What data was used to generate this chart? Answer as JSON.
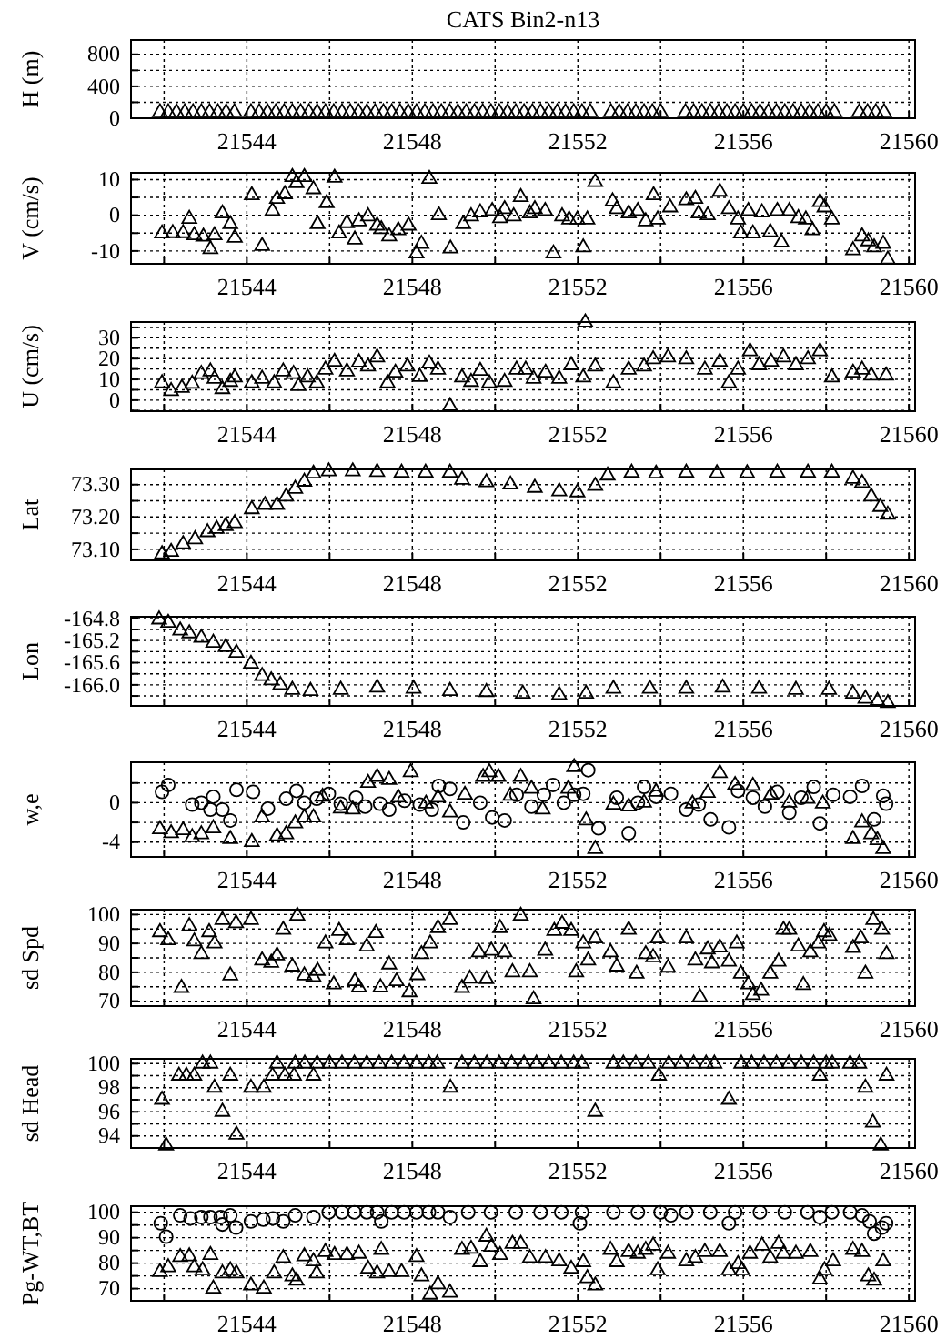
{
  "chart_data": [
    {
      "type": "scatter",
      "title": "CATS Bin2-n13",
      "ylabel": "H (m)",
      "xlim": [
        21541.2,
        21560.15
      ],
      "xticks": [
        {
          "value": 21542,
          "label": null
        },
        21544,
        {
          "value": 21546,
          "label": null
        },
        21548,
        {
          "value": 21550,
          "label": null
        },
        21552,
        {
          "value": 21554,
          "label": null
        },
        21556,
        {
          "value": 21558,
          "label": null
        },
        21560
      ],
      "ylim": [
        0,
        980
      ],
      "yticks": [
        0,
        {
          "value": 200,
          "label": null
        },
        400,
        {
          "value": 600,
          "label": null
        },
        800
      ],
      "grid": true,
      "series": [
        {
          "color": "#000000",
          "marker": "triangle",
          "x": [
            21541.9,
            21542.1,
            21542.3,
            21542.5,
            21542.7,
            21542.9,
            21543.1,
            21543.3,
            21543.5,
            21543.7,
            21544.1,
            21544.3,
            21544.5,
            21544.7,
            21544.9,
            21545.1,
            21545.3,
            21545.5,
            21545.7,
            21545.9,
            21546.1,
            21546.3,
            21546.5,
            21546.7,
            21546.9,
            21547.1,
            21547.3,
            21547.5,
            21547.7,
            21547.9,
            21548.1,
            21548.3,
            21548.5,
            21548.7,
            21548.9,
            21549.1,
            21549.3,
            21549.5,
            21549.7,
            21549.9,
            21550.1,
            21550.3,
            21550.5,
            21550.7,
            21550.9,
            21551.1,
            21551.3,
            21551.5,
            21551.7,
            21551.9,
            21552.1,
            21552.3,
            21552.8,
            21553.0,
            21553.2,
            21553.4,
            21553.6,
            21553.8,
            21554.0,
            21554.6,
            21554.8,
            21555.0,
            21555.2,
            21555.4,
            21555.6,
            21555.8,
            21556.0,
            21556.2,
            21556.4,
            21556.6,
            21556.8,
            21557.0,
            21557.2,
            21557.4,
            21557.6,
            21557.8,
            21558.0,
            21558.2,
            21558.8,
            21559.0,
            21559.2,
            21559.4
          ],
          "values": [
            75,
            75,
            75,
            75,
            75,
            75,
            75,
            75,
            75,
            75,
            75,
            75,
            75,
            75,
            75,
            75,
            75,
            75,
            75,
            75,
            75,
            75,
            75,
            75,
            75,
            75,
            75,
            75,
            75,
            75,
            75,
            75,
            75,
            75,
            75,
            75,
            75,
            75,
            75,
            75,
            75,
            75,
            75,
            75,
            75,
            75,
            75,
            75,
            75,
            75,
            75,
            75,
            75,
            75,
            75,
            75,
            75,
            75,
            75,
            75,
            75,
            75,
            75,
            75,
            75,
            75,
            75,
            75,
            75,
            75,
            75,
            75,
            75,
            75,
            75,
            75,
            75,
            75,
            75,
            75,
            75,
            75
          ]
        }
      ]
    },
    {
      "type": "scatter",
      "ylabel": "V (cm/s)",
      "xlim": [
        21541.2,
        21560.15
      ],
      "xticks": [
        {
          "value": 21542,
          "label": null
        },
        21544,
        {
          "value": 21546,
          "label": null
        },
        21548,
        {
          "value": 21550,
          "label": null
        },
        21552,
        {
          "value": 21554,
          "label": null
        },
        21556,
        {
          "value": 21558,
          "label": null
        },
        21560
      ],
      "ylim": [
        -13.6,
        11.9
      ],
      "yticks": [
        -10,
        {
          "value": -5,
          "label": null
        },
        0,
        {
          "value": 5,
          "label": null
        },
        10
      ],
      "grid": true,
      "series": [
        {
          "color": "#000000",
          "marker": "triangle",
          "x": [
            21541.95,
            21542.21,
            21542.46,
            21542.61,
            21542.73,
            21542.95,
            21543.12,
            21543.22,
            21543.41,
            21543.6,
            21543.71,
            21544.12,
            21544.37,
            21544.62,
            21544.73,
            21544.92,
            21545.1,
            21545.2,
            21545.39,
            21545.61,
            21545.71,
            21545.93,
            21546.12,
            21546.23,
            21546.42,
            21546.61,
            21546.71,
            21546.93,
            21547.15,
            21547.25,
            21547.44,
            21547.66,
            21547.91,
            21548.1,
            21548.22,
            21548.41,
            21548.64,
            21548.92,
            21549.23,
            21549.42,
            21549.64,
            21549.93,
            21550.12,
            21550.23,
            21550.45,
            21550.62,
            21550.84,
            21550.96,
            21551.21,
            21551.41,
            21551.62,
            21551.79,
            21551.99,
            21552.13,
            21552.23,
            21552.42,
            21552.84,
            21552.94,
            21553.23,
            21553.45,
            21553.64,
            21553.83,
            21553.93,
            21554.23,
            21554.62,
            21554.84,
            21554.92,
            21555.14,
            21555.43,
            21555.65,
            21555.87,
            21555.94,
            21556.12,
            21556.23,
            21556.45,
            21556.65,
            21556.82,
            21556.92,
            21557.11,
            21557.33,
            21557.51,
            21557.67,
            21557.85,
            21557.96,
            21558.14,
            21558.65,
            21558.87,
            21559.02,
            21559.16,
            21559.38,
            21559.49
          ],
          "values": [
            -5.1,
            -5,
            -5,
            -1,
            -5.6,
            -6,
            -9.5,
            -5.6,
            0.5,
            -2.5,
            -6.3,
            5.6,
            -8.6,
            1.2,
            4.6,
            5.9,
            10.7,
            9,
            10.7,
            7.3,
            -2.5,
            3.4,
            10.5,
            -5.1,
            -2.2,
            -6.8,
            -1.7,
            -0.3,
            -2.9,
            -3.9,
            -5.9,
            -4.2,
            -2.9,
            -10.7,
            -8,
            10.2,
            0,
            -9.3,
            -2.5,
            -0.3,
            0.8,
            1.2,
            -0.8,
            1.7,
            -0.3,
            5.1,
            0.5,
            1.7,
            1.2,
            -10.7,
            -0.3,
            -1.2,
            -1.2,
            -9,
            -1.2,
            9.3,
            3.9,
            1.7,
            0.5,
            1.2,
            -1.7,
            5.6,
            -1.2,
            2.2,
            4.2,
            4.6,
            0.5,
            0,
            6.6,
            1.7,
            -1.2,
            -5.1,
            1.2,
            -5.1,
            0.8,
            -4.7,
            1.2,
            -7.6,
            1.2,
            -0.8,
            -1.2,
            -4.2,
            3.7,
            2.2,
            -1.2,
            -9.8,
            -5.9,
            -7.3,
            -9,
            -8,
            -12.4
          ]
        }
      ]
    },
    {
      "type": "scatter",
      "ylabel": "U (cm/s)",
      "xlim": [
        21541.2,
        21560.15
      ],
      "xticks": [
        {
          "value": 21542,
          "label": null
        },
        21544,
        {
          "value": 21546,
          "label": null
        },
        21548,
        {
          "value": 21550,
          "label": null
        },
        21552,
        {
          "value": 21554,
          "label": null
        },
        21556,
        {
          "value": 21558,
          "label": null
        },
        21560
      ],
      "ylim": [
        -5.3,
        37.6
      ],
      "yticks": [
        {
          "value": -5,
          "label": null
        },
        0,
        {
          "value": 5,
          "label": null
        },
        10,
        {
          "value": 15,
          "label": null
        },
        20,
        {
          "value": 25,
          "label": null
        },
        30,
        {
          "value": 35,
          "label": null
        }
      ],
      "grid": true,
      "series": [
        {
          "color": "#000000",
          "marker": "triangle",
          "x": [
            21541.95,
            21542.17,
            21542.43,
            21542.68,
            21542.9,
            21543.12,
            21543.22,
            21543.41,
            21543.6,
            21543.71,
            21544.12,
            21544.37,
            21544.66,
            21544.88,
            21545.13,
            21545.25,
            21545.47,
            21545.69,
            21545.9,
            21546.12,
            21546.42,
            21546.71,
            21546.93,
            21547.15,
            21547.4,
            21547.59,
            21547.88,
            21548.18,
            21548.41,
            21548.62,
            21548.91,
            21549.2,
            21549.42,
            21549.64,
            21549.86,
            21550.23,
            21550.52,
            21550.74,
            21550.93,
            21551.22,
            21551.55,
            21551.84,
            21552.13,
            21552.18,
            21552.42,
            21552.86,
            21553.23,
            21553.6,
            21553.82,
            21554.18,
            21554.62,
            21555.07,
            21555.43,
            21555.65,
            21555.87,
            21556.16,
            21556.38,
            21556.67,
            21556.97,
            21557.27,
            21557.56,
            21557.85,
            21558.14,
            21558.65,
            21558.87,
            21559.09,
            21559.45
          ],
          "values": [
            8.2,
            4.4,
            5.9,
            7.9,
            12.6,
            13.8,
            10.3,
            5.3,
            8.8,
            10.9,
            8.2,
            10.3,
            8.2,
            13.8,
            12.6,
            6.8,
            10.9,
            8.2,
            14.7,
            18.5,
            13.8,
            18.2,
            16.2,
            20.6,
            8.2,
            13.2,
            16.2,
            11.2,
            17.6,
            14.7,
            -2.9,
            10.9,
            8.8,
            14.1,
            8.2,
            8.8,
            14.7,
            14.7,
            10.3,
            13.2,
            10.3,
            16.8,
            10.9,
            37.4,
            16.2,
            8.2,
            14.7,
            16.2,
            19.7,
            20.6,
            19.7,
            14.7,
            18.5,
            8.2,
            14.7,
            23.5,
            16.8,
            18.5,
            20.6,
            16.8,
            19.7,
            23.5,
            10.9,
            13.2,
            14.7,
            11.8,
            11.8
          ]
        }
      ]
    },
    {
      "type": "scatter",
      "ylabel": "Lat",
      "xlim": [
        21541.2,
        21560.15
      ],
      "xticks": [
        {
          "value": 21542,
          "label": null
        },
        21544,
        {
          "value": 21546,
          "label": null
        },
        21548,
        {
          "value": 21550,
          "label": null
        },
        21552,
        {
          "value": 21554,
          "label": null
        },
        21556,
        {
          "value": 21558,
          "label": null
        },
        21560
      ],
      "ylim": [
        73.066,
        73.347
      ],
      "yticks": [
        {
          "value": 73.1,
          "label": "73.10"
        },
        {
          "value": 73.15,
          "label": null
        },
        {
          "value": 73.2,
          "label": "73.20"
        },
        {
          "value": 73.25,
          "label": null
        },
        {
          "value": 73.3,
          "label": "73.30"
        }
      ],
      "grid": true,
      "series": [
        {
          "color": "#000000",
          "marker": "triangle",
          "x": [
            21541.95,
            21542.17,
            21542.46,
            21542.75,
            21543.05,
            21543.27,
            21543.49,
            21543.71,
            21544.12,
            21544.44,
            21544.73,
            21544.95,
            21545.17,
            21545.39,
            21545.61,
            21545.98,
            21546.56,
            21547.15,
            21547.74,
            21548.32,
            21548.91,
            21549.2,
            21549.79,
            21550.37,
            21550.96,
            21551.55,
            21551.99,
            21552.42,
            21552.72,
            21553.3,
            21553.89,
            21554.62,
            21555.36,
            21556.09,
            21556.82,
            21557.56,
            21558.14,
            21558.65,
            21558.87,
            21559.09,
            21559.31,
            21559.49
          ],
          "values": [
            73.085,
            73.092,
            73.116,
            73.131,
            73.153,
            73.163,
            73.172,
            73.181,
            73.224,
            73.237,
            73.237,
            73.263,
            73.287,
            73.309,
            73.334,
            73.341,
            73.341,
            73.339,
            73.337,
            73.337,
            73.337,
            73.315,
            73.307,
            73.3,
            73.29,
            73.279,
            73.276,
            73.296,
            73.328,
            73.337,
            73.334,
            73.337,
            73.335,
            73.335,
            73.337,
            73.337,
            73.337,
            73.318,
            73.305,
            73.263,
            73.231,
            73.207
          ]
        }
      ]
    },
    {
      "type": "scatter",
      "ylabel": "Lon",
      "xlim": [
        21541.2,
        21560.15
      ],
      "xticks": [
        {
          "value": 21542,
          "label": null
        },
        21544,
        {
          "value": 21546,
          "label": null
        },
        21548,
        {
          "value": 21550,
          "label": null
        },
        21552,
        {
          "value": 21554,
          "label": null
        },
        21556,
        {
          "value": 21558,
          "label": null
        },
        21560
      ],
      "ylim": [
        -166.38,
        -164.77
      ],
      "yticks": [
        {
          "value": -166.2,
          "label": null
        },
        {
          "value": -166.0,
          "label": "-166.0"
        },
        {
          "value": -165.8,
          "label": null
        },
        {
          "value": -165.6,
          "label": "-165.6"
        },
        {
          "value": -165.4,
          "label": null
        },
        {
          "value": -165.2,
          "label": "-165.2"
        },
        {
          "value": -165.0,
          "label": null
        },
        {
          "value": -164.8,
          "label": "-164.8"
        }
      ],
      "grid": true,
      "series": [
        {
          "color": "#000000",
          "marker": "triangle",
          "x": [
            21541.88,
            21542.1,
            21542.39,
            21542.61,
            21542.9,
            21543.19,
            21543.49,
            21543.75,
            21544.1,
            21544.37,
            21544.59,
            21544.81,
            21545.1,
            21545.54,
            21546.27,
            21547.15,
            21548.03,
            21548.91,
            21549.79,
            21550.67,
            21551.55,
            21552.2,
            21552.86,
            21553.74,
            21554.62,
            21555.5,
            21556.38,
            21557.27,
            21558.07,
            21558.65,
            21558.95,
            21559.24,
            21559.49
          ],
          "values": [
            -164.82,
            -164.88,
            -165.02,
            -165.07,
            -165.15,
            -165.24,
            -165.32,
            -165.42,
            -165.62,
            -165.84,
            -165.92,
            -166.0,
            -166.09,
            -166.11,
            -166.09,
            -166.05,
            -166.07,
            -166.11,
            -166.13,
            -166.16,
            -166.18,
            -166.16,
            -166.07,
            -166.07,
            -166.07,
            -166.05,
            -166.07,
            -166.09,
            -166.09,
            -166.16,
            -166.25,
            -166.29,
            -166.33
          ]
        }
      ]
    },
    {
      "type": "scatter",
      "ylabel": "w,e",
      "xlim": [
        21541.2,
        21560.15
      ],
      "xticks": [
        {
          "value": 21542,
          "label": null
        },
        21544,
        {
          "value": 21546,
          "label": null
        },
        21548,
        {
          "value": 21550,
          "label": null
        },
        21552,
        {
          "value": 21554,
          "label": null
        },
        21556,
        {
          "value": 21558,
          "label": null
        },
        21560
      ],
      "ylim": [
        -5.5,
        4.1
      ],
      "yticks": [
        -4,
        {
          "value": -2,
          "label": null
        },
        0,
        {
          "value": 2,
          "label": null
        }
      ],
      "grid": true,
      "series": [
        {
          "color": "#000000",
          "marker": "triangle",
          "x": [
            21541.9,
            21542.17,
            21542.46,
            21542.68,
            21542.9,
            21543.19,
            21543.6,
            21544.12,
            21544.37,
            21544.73,
            21544.95,
            21545.17,
            21545.39,
            21545.61,
            21545.83,
            21546.27,
            21546.56,
            21546.93,
            21547.15,
            21547.44,
            21547.66,
            21547.96,
            21548.33,
            21548.62,
            21548.91,
            21549.27,
            21549.71,
            21549.86,
            21550.08,
            21550.37,
            21550.62,
            21550.88,
            21551.15,
            21551.77,
            21551.91,
            21552.2,
            21552.42,
            21552.86,
            21553.23,
            21553.6,
            21553.89,
            21554.77,
            21555.14,
            21555.43,
            21555.8,
            21556.23,
            21556.67,
            21557.11,
            21557.55,
            21557.92,
            21558.65,
            21558.87,
            21559.09,
            21559.24,
            21559.38
          ],
          "values": [
            -2.7,
            -3.1,
            -2.8,
            -3.5,
            -3.2,
            -2.6,
            -3.7,
            -4,
            -1.5,
            -3.4,
            -3.2,
            -2.1,
            -1.5,
            -1.5,
            0.6,
            -0.6,
            -0.7,
            2,
            2.6,
            2.3,
            0.5,
            3.1,
            -0.1,
            0.5,
            -1,
            0.8,
            2.6,
            3.1,
            2.6,
            0.7,
            2.6,
            1.4,
            -0.7,
            1.4,
            3.6,
            -1.8,
            -4.7,
            -0.2,
            -0.4,
            0,
            1.1,
            -0.1,
            1,
            3,
            1.8,
            1.7,
            0.8,
            0,
            0.4,
            -0.1,
            -3.7,
            -2,
            -3.2,
            -3.8,
            -4.7
          ]
        },
        {
          "color": "#000000",
          "marker": "circle",
          "x": [
            21541.95,
            21542.1,
            21542.68,
            21542.9,
            21543.12,
            21543.19,
            21543.41,
            21543.6,
            21543.75,
            21544.15,
            21544.51,
            21544.95,
            21545.2,
            21545.39,
            21545.69,
            21545.98,
            21546.27,
            21546.64,
            21546.86,
            21547.22,
            21547.44,
            21547.81,
            21548.18,
            21548.47,
            21548.64,
            21548.91,
            21549.23,
            21549.64,
            21549.93,
            21550.23,
            21550.52,
            21550.88,
            21551.18,
            21551.4,
            21551.66,
            21551.91,
            21552.13,
            21552.25,
            21552.5,
            21552.94,
            21553.23,
            21553.45,
            21553.6,
            21553.89,
            21554.25,
            21554.62,
            21554.92,
            21555.21,
            21555.65,
            21555.87,
            21556.23,
            21556.52,
            21556.82,
            21557.11,
            21557.4,
            21557.7,
            21557.85,
            21558.17,
            21558.58,
            21558.87,
            21559.16,
            21559.38,
            21559.45
          ],
          "values": [
            1.1,
            1.8,
            -0.2,
            0,
            -0.7,
            0.6,
            -0.7,
            -1.8,
            1.3,
            1.1,
            -0.6,
            0.4,
            1.2,
            0,
            0.4,
            0.9,
            -0.1,
            0.5,
            -0.4,
            -0.1,
            -0.7,
            0.2,
            -0.2,
            -0.7,
            1.7,
            1.4,
            -2,
            0,
            -1.5,
            -1.8,
            0.8,
            -0.4,
            0.8,
            1.8,
            0,
            0.8,
            0.9,
            3.3,
            -2.6,
            0.5,
            -3.1,
            0,
            1.6,
            0.6,
            0.9,
            -0.7,
            -0.2,
            -1.7,
            -2.5,
            1.2,
            0.5,
            -0.4,
            1.1,
            -1,
            0.5,
            1.6,
            -2.1,
            0.8,
            0.6,
            1.7,
            -1.7,
            0.7,
            -0.1
          ]
        }
      ]
    },
    {
      "type": "scatter",
      "ylabel": "sd Spd",
      "xlim": [
        21541.2,
        21560.15
      ],
      "xticks": [
        {
          "value": 21542,
          "label": null
        },
        21544,
        {
          "value": 21546,
          "label": null
        },
        21548,
        {
          "value": 21550,
          "label": null
        },
        21552,
        {
          "value": 21554,
          "label": null
        },
        21556,
        {
          "value": 21558,
          "label": null
        },
        21560
      ],
      "ylim": [
        68.3,
        101.7
      ],
      "yticks": [
        70,
        {
          "value": 75,
          "label": null
        },
        80,
        {
          "value": 85,
          "label": null
        },
        90,
        {
          "value": 95,
          "label": null
        },
        100
      ],
      "grid": true,
      "series": [
        {
          "color": "#000000",
          "marker": "triangle",
          "x": [
            21541.9,
            21542.1,
            21542.42,
            21542.61,
            21542.73,
            21542.9,
            21543.09,
            21543.22,
            21543.41,
            21543.6,
            21543.74,
            21544.1,
            21544.37,
            21544.59,
            21544.73,
            21544.88,
            21545.1,
            21545.22,
            21545.39,
            21545.61,
            21545.71,
            21545.9,
            21546.1,
            21546.23,
            21546.42,
            21546.61,
            21546.71,
            21546.9,
            21547.12,
            21547.23,
            21547.44,
            21547.62,
            21547.93,
            21548.12,
            21548.22,
            21548.43,
            21548.62,
            21548.91,
            21549.2,
            21549.39,
            21549.61,
            21549.79,
            21549.91,
            21550.12,
            21550.23,
            21550.42,
            21550.62,
            21550.84,
            21550.93,
            21551.21,
            21551.43,
            21551.62,
            21551.84,
            21551.96,
            21552.13,
            21552.25,
            21552.42,
            21552.79,
            21552.94,
            21553.23,
            21553.42,
            21553.64,
            21553.82,
            21553.93,
            21554.18,
            21554.62,
            21554.84,
            21554.95,
            21555.14,
            21555.24,
            21555.43,
            21555.65,
            21555.84,
            21555.94,
            21556.12,
            21556.23,
            21556.43,
            21556.65,
            21556.85,
            21556.97,
            21557.11,
            21557.33,
            21557.45,
            21557.62,
            21557.81,
            21557.95,
            21558.08,
            21558.65,
            21558.84,
            21558.95,
            21559.14,
            21559.35,
            21559.46
          ],
          "values": [
            93.9,
            91.1,
            74.6,
            96,
            90.7,
            86.3,
            93.9,
            90,
            98.1,
            78.9,
            97,
            98.1,
            84.1,
            83.3,
            85.8,
            94.7,
            82,
            99.6,
            78.9,
            78.4,
            80.5,
            90,
            75.8,
            94.3,
            91.1,
            76.9,
            74.8,
            88.9,
            93.6,
            74.8,
            82.7,
            76.9,
            73.1,
            79,
            86.3,
            90,
            95.3,
            98.1,
            74.6,
            77.8,
            86.9,
            77.6,
            87.5,
            95.3,
            86.9,
            80,
            99.6,
            80,
            70.6,
            87.5,
            94.3,
            96.8,
            94.3,
            80,
            90,
            84.1,
            91.7,
            86.9,
            82,
            94.7,
            79.5,
            86.3,
            85.2,
            91.7,
            81.6,
            91.7,
            84.1,
            71.4,
            87.9,
            83.1,
            88.6,
            83.7,
            90,
            79.5,
            75.8,
            72.1,
            73.6,
            79.5,
            83.7,
            94.7,
            94.7,
            88.9,
            75.6,
            86.9,
            90,
            93.9,
            92.6,
            88.4,
            91.7,
            79.5,
            98.1,
            94.7,
            86.3
          ]
        }
      ]
    },
    {
      "type": "scatter",
      "ylabel": "sd Head",
      "xlim": [
        21541.2,
        21560.15
      ],
      "xticks": [
        {
          "value": 21542,
          "label": null
        },
        21544,
        {
          "value": 21546,
          "label": null
        },
        21548,
        {
          "value": 21550,
          "label": null
        },
        21552,
        {
          "value": 21554,
          "label": null
        },
        21556,
        {
          "value": 21558,
          "label": null
        },
        21560
      ],
      "ylim": [
        93,
        100.4
      ],
      "yticks": [
        94,
        {
          "value": 95,
          "label": null
        },
        96,
        {
          "value": 97,
          "label": null
        },
        98,
        {
          "value": 99,
          "label": null
        },
        100
      ],
      "grid": true,
      "series": [
        {
          "color": "#000000",
          "marker": "triangle",
          "x": [
            21541.95,
            21542.05,
            21542.36,
            21542.54,
            21542.73,
            21542.93,
            21543.12,
            21543.22,
            21543.41,
            21543.6,
            21543.75,
            21544.1,
            21544.41,
            21544.62,
            21544.73,
            21544.92,
            21545.14,
            21545.17,
            21545.4,
            21545.61,
            21545.7,
            21546.0,
            21546.3,
            21546.6,
            21546.9,
            21547.2,
            21547.5,
            21547.8,
            21548.1,
            21548.4,
            21548.6,
            21548.92,
            21549.2,
            21549.5,
            21549.8,
            21550.1,
            21550.4,
            21550.7,
            21551.0,
            21551.3,
            21551.6,
            21551.9,
            21552.1,
            21552.42,
            21552.86,
            21553.1,
            21553.4,
            21553.7,
            21553.96,
            21554.2,
            21554.5,
            21554.8,
            21555.1,
            21555.3,
            21555.65,
            21555.95,
            21556.2,
            21556.5,
            21556.8,
            21557.1,
            21557.4,
            21557.7,
            21557.85,
            21558.0,
            21558.15,
            21558.58,
            21558.8,
            21558.95,
            21559.13,
            21559.32,
            21559.46
          ],
          "values": [
            97,
            93.2,
            99,
            99,
            99,
            100,
            100,
            98,
            96,
            99,
            94.1,
            98,
            98,
            99,
            100,
            99,
            99,
            100,
            100,
            99,
            100,
            100,
            100,
            100,
            100,
            100,
            100,
            100,
            100,
            100,
            100,
            98,
            100,
            100,
            100,
            100,
            100,
            100,
            100,
            100,
            100,
            100,
            100,
            96,
            100,
            100,
            100,
            100,
            99,
            100,
            100,
            100,
            100,
            100,
            97,
            100,
            100,
            100,
            100,
            100,
            100,
            100,
            99,
            100,
            100,
            100,
            100,
            98,
            95.1,
            93.2,
            99
          ]
        }
      ]
    },
    {
      "type": "scatter",
      "ylabel": "Pg-WT,BT",
      "xlim": [
        21541.2,
        21560.15
      ],
      "xticks": [
        {
          "value": 21542,
          "label": null
        },
        21544,
        {
          "value": 21546,
          "label": null
        },
        21548,
        {
          "value": 21550,
          "label": null
        },
        21552,
        {
          "value": 21554,
          "label": null
        },
        21556,
        {
          "value": 21558,
          "label": null
        },
        21560
      ],
      "ylim": [
        65.2,
        102.4
      ],
      "yticks": [
        70,
        {
          "value": 75,
          "label": null
        },
        80,
        {
          "value": 85,
          "label": null
        },
        90,
        {
          "value": 95,
          "label": null
        },
        100
      ],
      "grid": true,
      "series": [
        {
          "color": "#000000",
          "marker": "circle",
          "x": [
            21541.92,
            21542.05,
            21542.39,
            21542.64,
            21542.9,
            21543.12,
            21543.37,
            21543.41,
            21543.6,
            21543.74,
            21544.1,
            21544.4,
            21544.63,
            21544.88,
            21545.17,
            21545.61,
            21545.98,
            21546.3,
            21546.6,
            21546.9,
            21547.15,
            21547.25,
            21547.5,
            21547.8,
            21548.1,
            21548.4,
            21548.62,
            21548.91,
            21549.35,
            21549.9,
            21550.5,
            21551.1,
            21551.6,
            21552.05,
            21552.1,
            21552.86,
            21553.45,
            21554.0,
            21554.25,
            21554.62,
            21555.2,
            21555.65,
            21555.8,
            21556.4,
            21557.0,
            21557.55,
            21557.85,
            21558.14,
            21558.58,
            21558.87,
            21559.05,
            21559.16,
            21559.35,
            21559.45
          ],
          "values": [
            95.7,
            90.4,
            98.8,
            97.6,
            98.1,
            98.1,
            98.1,
            95.2,
            98.8,
            94,
            96.4,
            97.1,
            97.6,
            96.4,
            98.8,
            98.1,
            100,
            100,
            100,
            100,
            100,
            96.4,
            100,
            100,
            100,
            100,
            100,
            98.1,
            100,
            100,
            100,
            100,
            100,
            95.7,
            100,
            100,
            100,
            100,
            98.8,
            100,
            100,
            95.7,
            100,
            100,
            100,
            100,
            98.1,
            100,
            100,
            98.8,
            96.4,
            91.6,
            94,
            95.7
          ]
        },
        {
          "color": "#000000",
          "marker": "triangle",
          "x": [
            21541.9,
            21542.1,
            21542.39,
            21542.61,
            21542.73,
            21542.93,
            21543.12,
            21543.19,
            21543.41,
            21543.6,
            21543.75,
            21544.1,
            21544.41,
            21544.66,
            21544.88,
            21545.1,
            21545.2,
            21545.39,
            21545.61,
            21545.69,
            21545.9,
            21546.12,
            21546.42,
            21546.71,
            21546.93,
            21547.15,
            21547.25,
            21547.44,
            21547.74,
            21548.1,
            21548.22,
            21548.43,
            21548.62,
            21548.91,
            21549.2,
            21549.42,
            21549.64,
            21549.79,
            21549.91,
            21550.12,
            21550.42,
            21550.62,
            21550.84,
            21551.22,
            21551.55,
            21551.84,
            21552.13,
            21552.23,
            21552.42,
            21552.79,
            21552.94,
            21553.23,
            21553.45,
            21553.64,
            21553.82,
            21553.93,
            21554.18,
            21554.62,
            21554.84,
            21555.07,
            21555.43,
            21555.65,
            21555.87,
            21555.97,
            21556.16,
            21556.45,
            21556.65,
            21556.85,
            21556.97,
            21557.27,
            21557.62,
            21557.85,
            21557.96,
            21558.17,
            21558.65,
            21558.87,
            21559.02,
            21559.16,
            21559.38
          ],
          "values": [
            76.5,
            78.4,
            82.4,
            82.7,
            78.4,
            77.2,
            83.2,
            70,
            76,
            77.2,
            76,
            71.2,
            70,
            76,
            82,
            74.8,
            73.1,
            82.7,
            80.7,
            76,
            84.4,
            83.2,
            83.2,
            83.7,
            77.8,
            76,
            85.2,
            76.5,
            76.5,
            82.4,
            74.8,
            67.6,
            71.7,
            68.4,
            85.2,
            85.6,
            80.4,
            90.4,
            86.4,
            83.2,
            87.6,
            87.6,
            82,
            82,
            80.7,
            77.8,
            80.4,
            74.1,
            71.2,
            85.2,
            80.4,
            84.4,
            83.7,
            85.2,
            86.9,
            77.2,
            83.7,
            80.7,
            82,
            84.4,
            84.4,
            77.2,
            79.6,
            77.2,
            83.7,
            86.9,
            82,
            87.6,
            83.7,
            83.7,
            84.4,
            73.6,
            77.2,
            80.7,
            85.2,
            84.4,
            74.8,
            73.1,
            80.7
          ]
        }
      ]
    }
  ]
}
